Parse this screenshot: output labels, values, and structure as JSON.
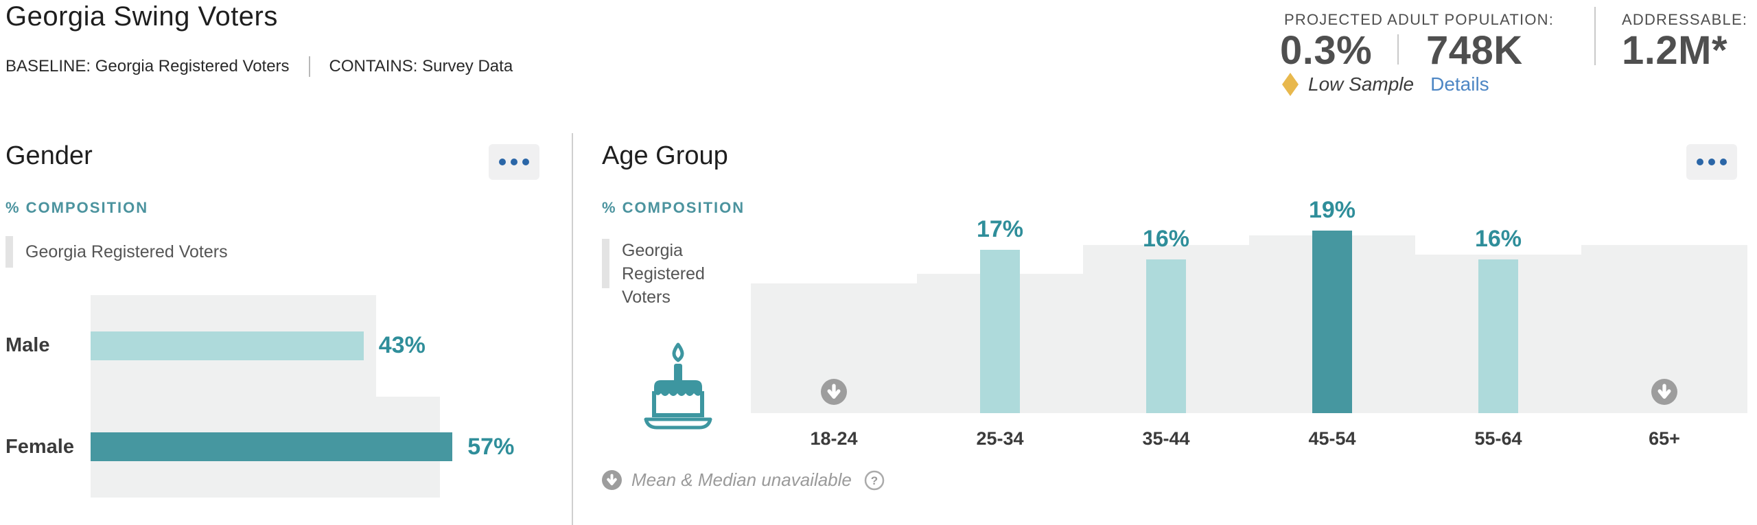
{
  "header": {
    "title": "Georgia Swing Voters",
    "baseline": "BASELINE: Georgia Registered Voters",
    "contains": "CONTAINS: Survey Data"
  },
  "stats": {
    "projected_label": "PROJECTED ADULT POPULATION:",
    "projected_pct": "0.3%",
    "projected_total": "748K",
    "addressable_label": "ADDRESSABLE:",
    "addressable_value": "1.2M*",
    "low_sample": "Low Sample",
    "details": "Details"
  },
  "panels": {
    "gender": {
      "title": "Gender",
      "section_label": "% COMPOSITION",
      "legend": "Georgia Registered Voters"
    },
    "age": {
      "title": "Age Group",
      "section_label": "% COMPOSITION",
      "legend": "Georgia Registered Voters",
      "footnote": "Mean & Median unavailable"
    }
  },
  "icons": {
    "menu": "ellipsis-icon",
    "low_sample": "diamond-icon",
    "suppressed": "down-arrow-circle-icon",
    "help": "question-circle-icon",
    "help_glyph": "?",
    "age": "birthday-cake-icon"
  },
  "colors": {
    "teal_dark": "#4697a0",
    "teal_light": "#aedadb",
    "teal_value_label": "#2f8e9a",
    "teal_section_label": "#4b939e",
    "backdrop_gray": "#eff0f0",
    "icon_gray": "#9d9d9d",
    "link_blue": "#4d86c4",
    "diamond_gold": "#e8b84d",
    "menu_dots_blue": "#2b66a7"
  },
  "chart_data": [
    {
      "type": "bar",
      "orientation": "horizontal",
      "title": "Gender",
      "subtitle": "% COMPOSITION",
      "categories": [
        "Male",
        "Female"
      ],
      "series": [
        {
          "name": "Georgia Swing Voters",
          "values": [
            43,
            57
          ],
          "labels": [
            "43%",
            "57%"
          ],
          "colors": [
            "#aedadb",
            "#4697a0"
          ]
        },
        {
          "name": "Georgia Registered Voters",
          "role": "baseline-backdrop",
          "values": [
            45,
            55
          ],
          "estimated": true
        }
      ],
      "value_unit": "%",
      "xlim": [
        0,
        100
      ],
      "grid": false,
      "legend_position": "top-left"
    },
    {
      "type": "bar",
      "orientation": "vertical",
      "title": "Age Group",
      "subtitle": "% COMPOSITION",
      "categories": [
        "18-24",
        "25-34",
        "35-44",
        "45-54",
        "55-64",
        "65+"
      ],
      "series": [
        {
          "name": "Georgia Swing Voters",
          "values": [
            null,
            17,
            16,
            19,
            16,
            null
          ],
          "labels": [
            null,
            "17%",
            "16%",
            "19%",
            "16%",
            null
          ],
          "colors": [
            null,
            "#aedadb",
            "#aedadb",
            "#4697a0",
            "#aedadb",
            null
          ],
          "suppressed_categories": [
            "18-24",
            "65+"
          ]
        },
        {
          "name": "Georgia Registered Voters",
          "role": "baseline-backdrop",
          "values": [
            13.5,
            14.5,
            17.5,
            18.5,
            16.5,
            17.5
          ],
          "estimated": true
        }
      ],
      "value_unit": "%",
      "grid": false,
      "legend_position": "top-left",
      "footnote": "Mean & Median unavailable"
    }
  ]
}
